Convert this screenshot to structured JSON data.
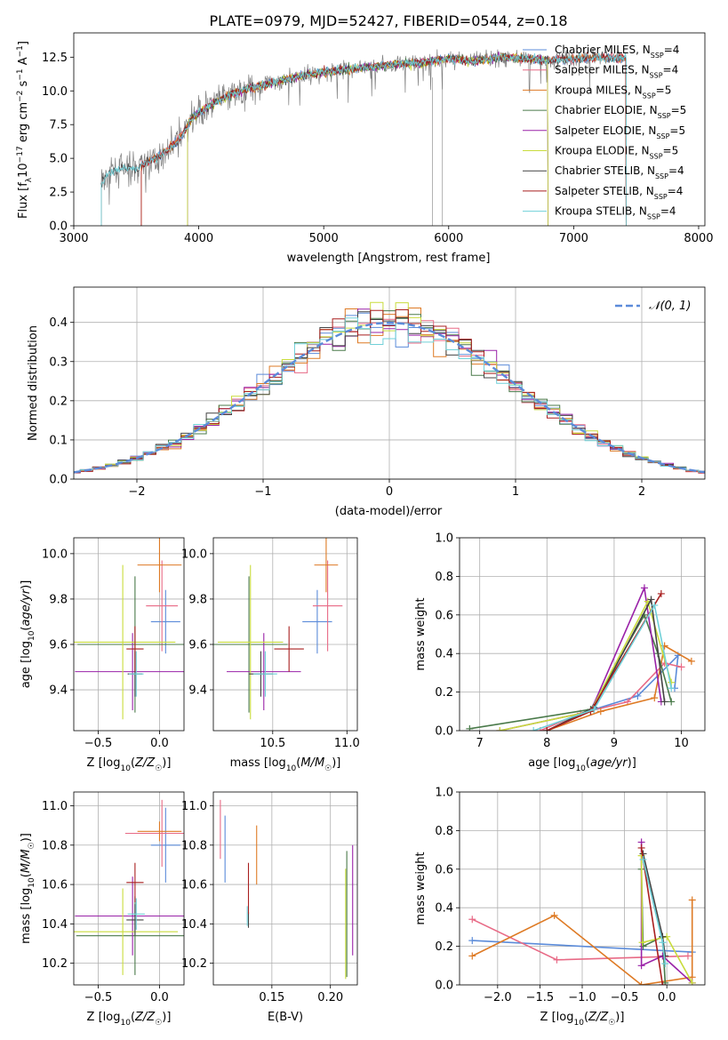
{
  "figure": {
    "title": "PLATE=0979, MJD=52427, FIBERID=0544, z=0.18"
  },
  "colors": {
    "chabrier_miles": "#5b8bd9",
    "salpeter_miles": "#e86a86",
    "kroupa_miles": "#de7a24",
    "chabrier_elodie": "#4a7a4a",
    "salpeter_elodie": "#9a22a8",
    "kroupa_elodie": "#c9dc3c",
    "chabrier_stelib": "#444444",
    "salpeter_stelib": "#a81f1f",
    "kroupa_stelib": "#70d0d8",
    "data": "#808080",
    "gaussian": "#5b8bd9"
  },
  "chart_data": [
    {
      "id": "spectrum",
      "type": "line",
      "title": "PLATE=0979, MJD=52427, FIBERID=0544, z=0.18",
      "xlabel": "wavelength [Angstrom, rest frame]",
      "ylabel": "Flux [f_λ 10^-17 erg cm^-2 s^-1 A^-1]",
      "xlim": [
        3000,
        8050
      ],
      "ylim": [
        0,
        14.3
      ],
      "xticks": [
        3000,
        4000,
        5000,
        6000,
        7000,
        8000
      ],
      "yticks": [
        0.0,
        2.5,
        5.0,
        7.5,
        10.0,
        12.5
      ],
      "grid": false,
      "legend_position": "right",
      "continuum": {
        "x": [
          3220,
          3300,
          3400,
          3500,
          3550,
          3650,
          3750,
          3850,
          3950,
          4050,
          4200,
          4400,
          4600,
          4800,
          5000,
          5200,
          5400,
          5600,
          5800,
          6000,
          6200,
          6400,
          6600,
          6800,
          7000,
          7200,
          7400
        ],
        "y": [
          3.2,
          4.0,
          4.3,
          4.2,
          4.5,
          5.0,
          5.6,
          6.5,
          8.0,
          8.7,
          9.5,
          10.2,
          10.6,
          11.1,
          11.4,
          11.6,
          11.8,
          12.0,
          12.1,
          12.4,
          12.2,
          12.5,
          12.4,
          12.3,
          12.4,
          12.5,
          12.4
        ]
      },
      "cutoffs": [
        3530,
        3540,
        3910,
        6790,
        6795,
        7410
      ],
      "series": [
        {
          "name": "Chabrier MILES, N_SSP=4",
          "color_key": "chabrier_miles"
        },
        {
          "name": "Salpeter MILES, N_SSP=4",
          "color_key": "salpeter_miles"
        },
        {
          "name": "Kroupa MILES, N_SSP=5",
          "color_key": "kroupa_miles"
        },
        {
          "name": "Chabrier ELODIE, N_SSP=5",
          "color_key": "chabrier_elodie"
        },
        {
          "name": "Salpeter ELODIE, N_SSP=5",
          "color_key": "salpeter_elodie"
        },
        {
          "name": "Kroupa ELODIE, N_SSP=5",
          "color_key": "kroupa_elodie"
        },
        {
          "name": "Chabrier STELIB, N_SSP=4",
          "color_key": "chabrier_stelib"
        },
        {
          "name": "Salpeter STELIB, N_SSP=4",
          "color_key": "salpeter_stelib"
        },
        {
          "name": "Kroupa STELIB, N_SSP=4",
          "color_key": "kroupa_stelib"
        }
      ]
    },
    {
      "id": "residuals",
      "type": "line",
      "xlabel": "(data-model)/error",
      "ylabel": "Normed distribution",
      "xlim": [
        -2.5,
        2.5
      ],
      "ylim": [
        0,
        0.49
      ],
      "xticks": [
        -2,
        -1,
        0,
        1,
        2
      ],
      "yticks": [
        0.0,
        0.1,
        0.2,
        0.3,
        0.4
      ],
      "grid": true,
      "legend_position": "top-right",
      "gaussian_label": "𝒩(0, 1)",
      "bin_width": 0.1
    },
    {
      "id": "age_vs_Z",
      "type": "scatter",
      "xlabel": "Z [log10(Z/Z☉)]",
      "ylabel": "age  [log10(age/yr)]",
      "xlim": [
        -0.7,
        0.2
      ],
      "ylim": [
        9.22,
        10.07
      ],
      "xticks": [
        -0.5,
        0.0
      ],
      "yticks": [
        9.4,
        9.6,
        9.8,
        10.0
      ],
      "grid": true,
      "points": [
        {
          "key": "chabrier_miles",
          "x": 0.05,
          "xerr": 0.12,
          "y": 9.7,
          "yerr": 0.14
        },
        {
          "key": "salpeter_miles",
          "x": 0.02,
          "xerr": 0.13,
          "y": 9.77,
          "yerr": 0.2
        },
        {
          "key": "kroupa_miles",
          "x": 0.0,
          "xerr": 0.18,
          "y": 9.95,
          "yerr": 0.12
        },
        {
          "key": "chabrier_elodie",
          "x": -0.2,
          "xerr": 0.47,
          "y": 9.6,
          "yerr": 0.3
        },
        {
          "key": "salpeter_elodie",
          "x": -0.22,
          "xerr": 0.47,
          "y": 9.48,
          "yerr": 0.17
        },
        {
          "key": "kroupa_elodie",
          "x": -0.3,
          "xerr": 0.43,
          "y": 9.61,
          "yerr": 0.34
        },
        {
          "key": "chabrier_stelib",
          "x": -0.2,
          "xerr": 0.06,
          "y": 9.47,
          "yerr": 0.1
        },
        {
          "key": "salpeter_stelib",
          "x": -0.2,
          "xerr": 0.07,
          "y": 9.58,
          "yerr": 0.1
        },
        {
          "key": "kroupa_stelib",
          "x": -0.19,
          "xerr": 0.06,
          "y": 9.47,
          "yerr": 0.1
        }
      ]
    },
    {
      "id": "age_vs_mass",
      "type": "scatter",
      "xlabel": "mass [log10(M/M☉)]",
      "ylabel": "",
      "xlim": [
        10.1,
        11.07
      ],
      "ylim": [
        9.22,
        10.07
      ],
      "xticks": [
        10.5,
        11.0
      ],
      "yticks": [
        9.4,
        9.6,
        9.8,
        10.0
      ],
      "grid": true,
      "points": [
        {
          "key": "chabrier_miles",
          "x": 10.8,
          "xerr": 0.1,
          "y": 9.7,
          "yerr": 0.14
        },
        {
          "key": "salpeter_miles",
          "x": 10.87,
          "xerr": 0.1,
          "y": 9.77,
          "yerr": 0.2
        },
        {
          "key": "kroupa_miles",
          "x": 10.86,
          "xerr": 0.08,
          "y": 9.95,
          "yerr": 0.12
        },
        {
          "key": "chabrier_elodie",
          "x": 10.34,
          "xerr": 0.26,
          "y": 9.6,
          "yerr": 0.3
        },
        {
          "key": "salpeter_elodie",
          "x": 10.44,
          "xerr": 0.25,
          "y": 9.48,
          "yerr": 0.17
        },
        {
          "key": "kroupa_elodie",
          "x": 10.35,
          "xerr": 0.22,
          "y": 9.61,
          "yerr": 0.34
        },
        {
          "key": "chabrier_stelib",
          "x": 10.42,
          "xerr": 0.08,
          "y": 9.47,
          "yerr": 0.1
        },
        {
          "key": "salpeter_stelib",
          "x": 10.61,
          "xerr": 0.1,
          "y": 9.58,
          "yerr": 0.1
        },
        {
          "key": "kroupa_stelib",
          "x": 10.45,
          "xerr": 0.08,
          "y": 9.47,
          "yerr": 0.1
        }
      ]
    },
    {
      "id": "weight_vs_age",
      "type": "line",
      "xlabel": "age  [log10(age/yr)]",
      "ylabel": "mass weight",
      "xlim": [
        6.7,
        10.35
      ],
      "ylim": [
        0,
        1.0
      ],
      "xticks": [
        7,
        8,
        9,
        10
      ],
      "yticks": [
        0.0,
        0.2,
        0.4,
        0.6,
        0.8,
        1.0
      ],
      "grid": true,
      "series": [
        {
          "key": "chabrier_miles",
          "x": [
            8.0,
            8.7,
            9.35,
            9.95,
            9.9
          ],
          "y": [
            0.0,
            0.11,
            0.18,
            0.39,
            0.22
          ]
        },
        {
          "key": "salpeter_miles",
          "x": [
            7.9,
            8.5,
            9.2,
            9.75,
            10.0
          ],
          "y": [
            0.0,
            0.09,
            0.15,
            0.35,
            0.33
          ]
        },
        {
          "key": "kroupa_miles",
          "x": [
            8.0,
            8.8,
            9.6,
            9.75,
            10.15
          ],
          "y": [
            0.0,
            0.1,
            0.17,
            0.44,
            0.36
          ]
        },
        {
          "key": "chabrier_elodie",
          "x": [
            6.85,
            8.65,
            9.45,
            9.65,
            9.85
          ],
          "y": [
            0.01,
            0.11,
            0.6,
            0.4,
            0.15
          ]
        },
        {
          "key": "salpeter_elodie",
          "x": [
            7.3,
            8.65,
            9.45,
            9.7
          ],
          "y": [
            0.0,
            0.1,
            0.74,
            0.15
          ]
        },
        {
          "key": "kroupa_elodie",
          "x": [
            7.3,
            8.65,
            9.5,
            9.85
          ],
          "y": [
            0.0,
            0.1,
            0.67,
            0.25
          ]
        },
        {
          "key": "chabrier_stelib",
          "x": [
            8.0,
            8.7,
            9.55,
            9.75
          ],
          "y": [
            0.0,
            0.12,
            0.68,
            0.15
          ]
        },
        {
          "key": "salpeter_stelib",
          "x": [
            8.0,
            8.65,
            9.7
          ],
          "y": [
            0.0,
            0.1,
            0.71
          ]
        },
        {
          "key": "kroupa_stelib",
          "x": [
            7.8,
            8.7,
            9.6,
            9.85
          ],
          "y": [
            0.0,
            0.11,
            0.65,
            0.22
          ]
        }
      ]
    },
    {
      "id": "mass_vs_Z",
      "type": "scatter",
      "xlabel": "Z [log10(Z/Z☉)]",
      "ylabel": "mass [log10(M/M☉)]",
      "xlim": [
        -0.7,
        0.2
      ],
      "ylim": [
        10.09,
        11.07
      ],
      "xticks": [
        -0.5,
        0.0
      ],
      "yticks": [
        10.2,
        10.4,
        10.6,
        10.8,
        11.0
      ],
      "grid": true,
      "points": [
        {
          "key": "chabrier_miles",
          "x": 0.05,
          "xerr": 0.12,
          "y": 10.8,
          "yerr": 0.19
        },
        {
          "key": "salpeter_miles",
          "x": 0.02,
          "xerr": 0.3,
          "y": 10.86,
          "yerr": 0.17
        },
        {
          "key": "kroupa_miles",
          "x": 0.0,
          "xerr": 0.18,
          "y": 10.87,
          "yerr": 0.05
        },
        {
          "key": "chabrier_elodie",
          "x": -0.2,
          "xerr": 0.48,
          "y": 10.34,
          "yerr": 0.2
        },
        {
          "key": "salpeter_elodie",
          "x": -0.22,
          "xerr": 0.47,
          "y": 10.44,
          "yerr": 0.2
        },
        {
          "key": "kroupa_elodie",
          "x": -0.3,
          "xerr": 0.45,
          "y": 10.36,
          "yerr": 0.22
        },
        {
          "key": "chabrier_stelib",
          "x": -0.2,
          "xerr": 0.07,
          "y": 10.42,
          "yerr": 0.08
        },
        {
          "key": "salpeter_stelib",
          "x": -0.2,
          "xerr": 0.07,
          "y": 10.61,
          "yerr": 0.1
        },
        {
          "key": "kroupa_stelib",
          "x": -0.19,
          "xerr": 0.07,
          "y": 10.45,
          "yerr": 0.08
        }
      ]
    },
    {
      "id": "mass_vs_ebv",
      "type": "scatter",
      "xlabel": "E(B-V)",
      "ylabel": "",
      "xlim": [
        0.1,
        0.223
      ],
      "ylim": [
        10.09,
        11.07
      ],
      "xticks": [
        0.15,
        0.2
      ],
      "yticks": [
        10.2,
        10.4,
        10.6,
        10.8,
        11.0
      ],
      "grid": true,
      "points": [
        {
          "key": "chabrier_miles",
          "x": 0.11,
          "xerr": 0,
          "y": 10.78,
          "yerr": 0.17
        },
        {
          "key": "salpeter_miles",
          "x": 0.106,
          "xerr": 0,
          "y": 10.88,
          "yerr": 0.15
        },
        {
          "key": "kroupa_miles",
          "x": 0.137,
          "xerr": 0,
          "y": 10.75,
          "yerr": 0.15
        },
        {
          "key": "chabrier_elodie",
          "x": 0.214,
          "xerr": 0,
          "y": 10.45,
          "yerr": 0.32
        },
        {
          "key": "salpeter_elodie",
          "x": 0.219,
          "xerr": 0,
          "y": 10.52,
          "yerr": 0.28
        },
        {
          "key": "kroupa_elodie",
          "x": 0.213,
          "xerr": 0,
          "y": 10.4,
          "yerr": 0.28
        },
        {
          "key": "chabrier_stelib",
          "x": 0.13,
          "xerr": 0,
          "y": 10.42,
          "yerr": 0.04
        },
        {
          "key": "salpeter_stelib",
          "x": 0.13,
          "xerr": 0,
          "y": 10.58,
          "yerr": 0.13
        },
        {
          "key": "kroupa_stelib",
          "x": 0.129,
          "xerr": 0,
          "y": 10.44,
          "yerr": 0.05
        }
      ]
    },
    {
      "id": "weight_vs_Z",
      "type": "line",
      "xlabel": "Z [log10(Z/Z☉)]",
      "ylabel": "mass weight",
      "xlim": [
        -2.45,
        0.45
      ],
      "ylim": [
        0,
        1.0
      ],
      "xticks": [
        -2.0,
        -1.5,
        -1.0,
        -0.5,
        0.0
      ],
      "yticks": [
        0.0,
        0.2,
        0.4,
        0.6,
        0.8,
        1.0
      ],
      "grid": true,
      "series": [
        {
          "key": "chabrier_miles",
          "x": [
            -2.3,
            0.3
          ],
          "y": [
            0.23,
            0.17
          ]
        },
        {
          "key": "salpeter_miles",
          "x": [
            -2.3,
            -1.3,
            0.25
          ],
          "y": [
            0.34,
            0.13,
            0.15
          ]
        },
        {
          "key": "kroupa_miles",
          "x": [
            -2.3,
            -1.33,
            -0.3,
            0.3,
            0.3
          ],
          "y": [
            0.15,
            0.36,
            0.0,
            0.04,
            0.44
          ]
        },
        {
          "key": "chabrier_elodie",
          "x": [
            -0.3,
            -0.28,
            -0.05,
            -0.02
          ],
          "y": [
            0.6,
            0.2,
            0.25,
            0.01
          ]
        },
        {
          "key": "salpeter_elodie",
          "x": [
            -0.3,
            -0.3,
            -0.05,
            0.3
          ],
          "y": [
            0.74,
            0.1,
            0.15,
            0.01
          ]
        },
        {
          "key": "kroupa_elodie",
          "x": [
            -0.3,
            -0.29,
            0.0,
            0.3
          ],
          "y": [
            0.67,
            0.22,
            0.25,
            0.01
          ]
        },
        {
          "key": "chabrier_stelib",
          "x": [
            -0.28,
            -0.05,
            -0.02
          ],
          "y": [
            0.68,
            0.25,
            0.15
          ]
        },
        {
          "key": "salpeter_stelib",
          "x": [
            -0.3,
            -0.05
          ],
          "y": [
            0.71,
            0.0
          ]
        },
        {
          "key": "kroupa_stelib",
          "x": [
            -0.28,
            -0.05,
            -0.02
          ],
          "y": [
            0.65,
            0.22,
            0.11
          ]
        }
      ]
    }
  ]
}
